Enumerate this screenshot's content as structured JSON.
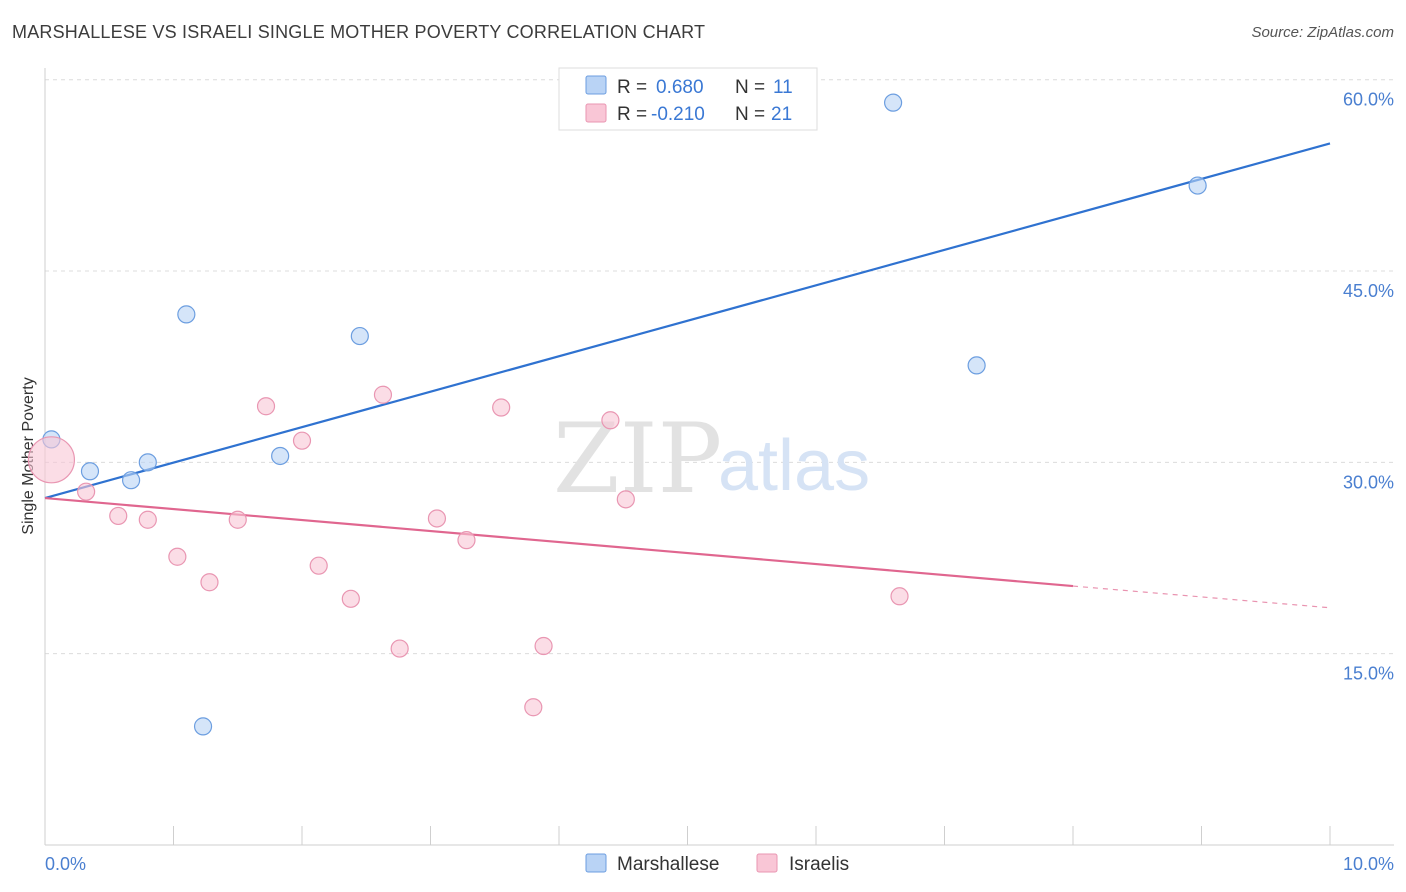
{
  "title": "MARSHALLESE VS ISRAELI SINGLE MOTHER POVERTY CORRELATION CHART",
  "source": "Source: ZipAtlas.com",
  "watermark": {
    "zip": "ZIP",
    "atlas": "atlas"
  },
  "colors": {
    "marshallese_fill": "#b9d3f5",
    "marshallese_stroke": "#6c9ee0",
    "marshallese_line": "#2f72d0",
    "israelis_fill": "#f9c6d6",
    "israelis_stroke": "#e996b2",
    "israelis_line": "#e0668f",
    "grid": "#dcdcdc",
    "tick_label": "#4a7fd0"
  },
  "legend": {
    "rows": [
      {
        "r_label": "R = ",
        "r_value": "0.680",
        "n_label": "N = ",
        "n_value": "11"
      },
      {
        "r_label": "R = ",
        "r_value": "-0.210",
        "n_label": "N = ",
        "n_value": "21"
      }
    ]
  },
  "chart_data": {
    "type": "scatter",
    "title": "MARSHALLESE VS ISRAELI SINGLE MOTHER POVERTY CORRELATION CHART",
    "xlabel": "",
    "ylabel": "Single Mother Poverty",
    "xlim": [
      0,
      10
    ],
    "ylim": [
      0,
      63
    ],
    "x_tick_labels": [
      {
        "value": 0,
        "label": "0.0%"
      },
      {
        "value": 10,
        "label": "10.0%"
      }
    ],
    "y_tick_labels": [
      {
        "value": 15,
        "label": "15.0%"
      },
      {
        "value": 30,
        "label": "30.0%"
      },
      {
        "value": 45,
        "label": "45.0%"
      },
      {
        "value": 60,
        "label": "60.0%"
      }
    ],
    "grid": "horizontal dashed",
    "legend_position": "top-center",
    "series": [
      {
        "name": "Marshallese",
        "points": [
          {
            "x": 0.05,
            "y": 31.8
          },
          {
            "x": 0.35,
            "y": 29.3
          },
          {
            "x": 0.67,
            "y": 28.6
          },
          {
            "x": 0.8,
            "y": 30.0
          },
          {
            "x": 1.1,
            "y": 41.6
          },
          {
            "x": 1.23,
            "y": 9.3
          },
          {
            "x": 1.83,
            "y": 30.5
          },
          {
            "x": 2.45,
            "y": 39.9
          },
          {
            "x": 6.6,
            "y": 58.2
          },
          {
            "x": 7.25,
            "y": 37.6
          },
          {
            "x": 8.97,
            "y": 51.7
          }
        ],
        "trend": {
          "x0": 0,
          "y0": 27.2,
          "x1": 10,
          "y1": 55.0
        }
      },
      {
        "name": "Israelis",
        "points": [
          {
            "x": 0.05,
            "y": 30.2,
            "large": true
          },
          {
            "x": 0.32,
            "y": 27.7
          },
          {
            "x": 0.57,
            "y": 25.8
          },
          {
            "x": 0.8,
            "y": 25.5
          },
          {
            "x": 1.03,
            "y": 22.6
          },
          {
            "x": 1.28,
            "y": 20.6
          },
          {
            "x": 1.5,
            "y": 25.5
          },
          {
            "x": 1.72,
            "y": 34.4
          },
          {
            "x": 2.0,
            "y": 31.7
          },
          {
            "x": 2.13,
            "y": 21.9
          },
          {
            "x": 2.38,
            "y": 19.3
          },
          {
            "x": 2.63,
            "y": 35.3
          },
          {
            "x": 2.76,
            "y": 15.4
          },
          {
            "x": 3.05,
            "y": 25.6
          },
          {
            "x": 3.28,
            "y": 23.9
          },
          {
            "x": 3.55,
            "y": 34.3
          },
          {
            "x": 3.8,
            "y": 10.8
          },
          {
            "x": 3.88,
            "y": 15.6
          },
          {
            "x": 4.4,
            "y": 33.3
          },
          {
            "x": 4.52,
            "y": 27.1
          },
          {
            "x": 6.65,
            "y": 19.5
          }
        ],
        "trend": {
          "x0": 0,
          "y0": 27.2,
          "x1": 8.0,
          "y1": 20.3,
          "dash_x1": 10,
          "dash_y1": 18.6
        }
      }
    ]
  }
}
